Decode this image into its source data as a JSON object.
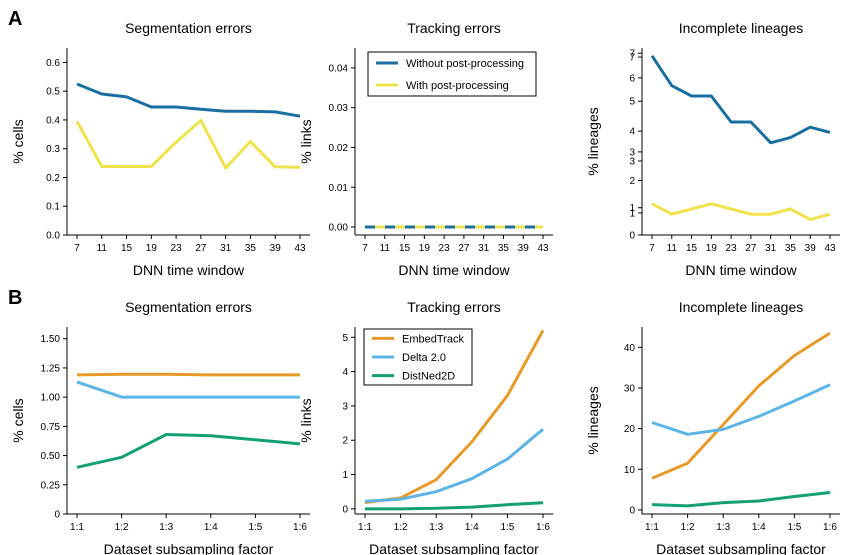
{
  "panels": [
    "A",
    "B"
  ],
  "chart_data": [
    {
      "type": "line",
      "title": "Segmentation errors",
      "xlabel": "DNN time window",
      "ylabel": "% cells",
      "x": [
        7,
        11,
        15,
        19,
        23,
        27,
        31,
        35,
        39,
        43
      ],
      "x_ticks": [
        "7",
        "11",
        "15",
        "19",
        "23",
        "27",
        "31",
        "35",
        "39",
        "43"
      ],
      "ylim": [
        0,
        0.65
      ],
      "y_ticks": [
        "0.0",
        "0.1",
        "0.2",
        "0.3",
        "0.4",
        "0.5",
        "0.6"
      ],
      "series": [
        {
          "name": "Without post-processing",
          "color": "#1a6fa0",
          "values": [
            0.525,
            0.49,
            0.48,
            0.445,
            0.445,
            0.437,
            0.43,
            0.43,
            0.428,
            0.413
          ]
        },
        {
          "name": "With post-processing",
          "color": "#efe34d",
          "values": [
            0.395,
            0.238,
            0.238,
            0.238,
            0.323,
            0.398,
            0.233,
            0.325,
            0.237,
            0.235
          ]
        }
      ],
      "legend": false,
      "grid": false
    },
    {
      "type": "line",
      "title": "Tracking errors",
      "xlabel": "DNN time window",
      "ylabel": "% links",
      "x": [
        7,
        11,
        15,
        19,
        23,
        27,
        31,
        35,
        39,
        43
      ],
      "x_ticks": [
        "7",
        "11",
        "15",
        "19",
        "23",
        "27",
        "31",
        "35",
        "39",
        "43"
      ],
      "ylim": [
        -0.002,
        0.045
      ],
      "y_ticks": [
        "0.00",
        "0.01",
        "0.02",
        "0.03",
        "0.04"
      ],
      "series": [
        {
          "name": "Without post-processing",
          "color": "#1a6fa0",
          "values": [
            0,
            0,
            0,
            0,
            0,
            0,
            0,
            0,
            0,
            0
          ],
          "dashed": true
        },
        {
          "name": "With post-processing",
          "color": "#efe34d",
          "values": [
            0,
            0,
            0,
            0,
            0,
            0,
            0,
            0,
            0,
            0
          ],
          "dashed": true
        }
      ],
      "legend": true,
      "legend_position": "top-right",
      "legend_entries": [
        "Without post-processing",
        "With post-processing"
      ],
      "grid": false
    },
    {
      "type": "line",
      "title": "Incomplete lineages",
      "xlabel": "DNN time window",
      "ylabel": "% lineages",
      "x": [
        7,
        11,
        15,
        19,
        23,
        27,
        31,
        35,
        39,
        43
      ],
      "x_ticks": [
        "7",
        "11",
        "15",
        "19",
        "23",
        "27",
        "31",
        "35",
        "39",
        "43"
      ],
      "ylim": [
        0,
        7.2
      ],
      "y_ticks": [
        "0",
        "1",
        "1",
        "2",
        "3",
        "3",
        "4",
        "5",
        "6",
        "7",
        "7"
      ],
      "y_tick_values": [
        0,
        0.85,
        1.05,
        2.1,
        2.85,
        3.2,
        4.0,
        5.15,
        6.05,
        6.85,
        7.0
      ],
      "series": [
        {
          "name": "Without post-processing",
          "color": "#1a6fa0",
          "values": [
            6.9,
            5.75,
            5.35,
            5.35,
            4.35,
            4.35,
            3.55,
            3.75,
            4.15,
            3.95
          ]
        },
        {
          "name": "With post-processing",
          "color": "#efe34d",
          "values": [
            1.2,
            0.8,
            1.0,
            1.2,
            1.0,
            0.8,
            0.8,
            1.0,
            0.6,
            0.8
          ]
        }
      ],
      "legend": false,
      "grid": false
    },
    {
      "type": "line",
      "title": "Segmentation errors",
      "xlabel": "Dataset subsampling factor",
      "ylabel": "% cells",
      "x": [
        "1:1",
        "1:2",
        "1:3",
        "1:4",
        "1:5",
        "1:6"
      ],
      "x_ticks": [
        "1:1",
        "1:2",
        "1:3",
        "1:4",
        "1:5",
        "1:6"
      ],
      "ylim": [
        0,
        1.6
      ],
      "y_ticks": [
        "0",
        "0.25",
        "0.50",
        "0.75",
        "1.00",
        "1.25",
        "1.50"
      ],
      "series": [
        {
          "name": "EmbedTrack",
          "color": "#e69a2a",
          "values": [
            1.19,
            1.195,
            1.195,
            1.19,
            1.19,
            1.19
          ]
        },
        {
          "name": "Delta 2.0",
          "color": "#5cb5e5",
          "values": [
            1.13,
            1.0,
            1.0,
            1.0,
            1.0,
            1.0
          ]
        },
        {
          "name": "DistNed2D",
          "color": "#13a073",
          "values": [
            0.4,
            0.485,
            0.68,
            0.67,
            0.635,
            0.6
          ]
        }
      ],
      "legend": false,
      "grid": false
    },
    {
      "type": "line",
      "title": "Tracking errors",
      "xlabel": "Dataset subsampling factor",
      "ylabel": "% links",
      "x": [
        "1:1",
        "1:2",
        "1:3",
        "1:4",
        "1:5",
        "1:6"
      ],
      "x_ticks": [
        "1:1",
        "1:2",
        "1:3",
        "1:4",
        "1:5",
        "1:6"
      ],
      "ylim": [
        -0.15,
        5.3
      ],
      "y_ticks": [
        "0",
        "1",
        "2",
        "3",
        "4",
        "5"
      ],
      "series": [
        {
          "name": "EmbedTrack",
          "color": "#e69a2a",
          "values": [
            0.18,
            0.32,
            0.85,
            1.95,
            3.3,
            5.2
          ]
        },
        {
          "name": "Delta 2.0",
          "color": "#5cb5e5",
          "values": [
            0.22,
            0.28,
            0.5,
            0.88,
            1.45,
            2.32
          ]
        },
        {
          "name": "DistNed2D",
          "color": "#13a073",
          "values": [
            0.0,
            0.0,
            0.02,
            0.05,
            0.12,
            0.18
          ]
        }
      ],
      "legend": true,
      "legend_position": "top-left",
      "legend_entries": [
        "EmbedTrack",
        "Delta 2.0",
        "DistNed2D"
      ],
      "grid": false
    },
    {
      "type": "line",
      "title": "Incomplete lineages",
      "xlabel": "Dataset subsampling factor",
      "ylabel": "% lineages",
      "x": [
        "1:1",
        "1:2",
        "1:3",
        "1:4",
        "1:5",
        "1:6"
      ],
      "x_ticks": [
        "1:1",
        "1:2",
        "1:3",
        "1:4",
        "1:5",
        "1:6"
      ],
      "ylim": [
        -1,
        45
      ],
      "y_ticks": [
        "0",
        "10",
        "20",
        "30",
        "40"
      ],
      "series": [
        {
          "name": "EmbedTrack",
          "color": "#e69a2a",
          "values": [
            7.8,
            11.5,
            21.0,
            30.5,
            38.0,
            43.5
          ]
        },
        {
          "name": "Delta 2.0",
          "color": "#5cb5e5",
          "values": [
            21.5,
            18.6,
            19.8,
            23.0,
            26.8,
            30.8
          ]
        },
        {
          "name": "DistNed2D",
          "color": "#13a073",
          "values": [
            1.3,
            1.0,
            1.8,
            2.2,
            3.3,
            4.3
          ]
        }
      ],
      "legend": false,
      "grid": false
    }
  ]
}
